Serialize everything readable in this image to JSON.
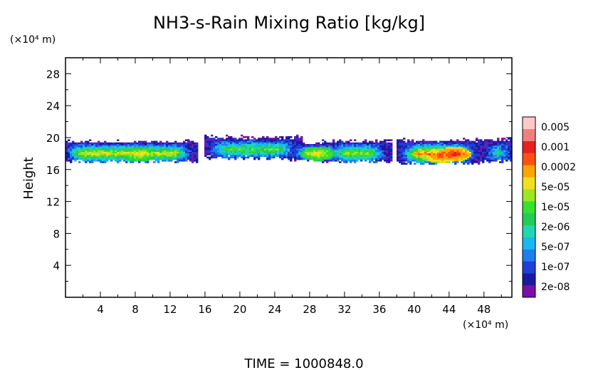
{
  "chart_data": {
    "type": "heatmap",
    "title": "NH3-s-Rain Mixing Ratio [kg/kg]",
    "xlabel": "",
    "ylabel": "Height",
    "x_unit_label": "(×10⁴ m)",
    "y_unit_label": "(×10⁴ m)",
    "xlim": [
      0,
      51.2
    ],
    "ylim": [
      0,
      30
    ],
    "x_ticks": [
      4,
      8,
      12,
      16,
      20,
      24,
      28,
      32,
      36,
      40,
      44,
      48
    ],
    "y_ticks": [
      4,
      8,
      12,
      16,
      20,
      24,
      28
    ],
    "x_tick_labels": [
      "4",
      "8",
      "12",
      "16",
      "20",
      "24",
      "28",
      "32",
      "36",
      "40",
      "44",
      "48"
    ],
    "y_tick_labels": [
      "4",
      "8",
      "12",
      "16",
      "20",
      "24",
      "28"
    ],
    "colorbar": {
      "colors": [
        "#7b0fa8",
        "#1a1aa0",
        "#1f3fd8",
        "#1e7ef0",
        "#18b8f0",
        "#1fd8b0",
        "#22cc55",
        "#38e030",
        "#9be820",
        "#f0e020",
        "#ffa500",
        "#ff5010",
        "#e82020",
        "#f08080",
        "#ffc8c8"
      ],
      "labels": [
        "2e-08",
        "1e-07",
        "5e-07",
        "2e-06",
        "1e-05",
        "5e-05",
        "0.0002",
        "0.001",
        "0.005"
      ]
    },
    "field_description": "Cloud band between heights ~17 and ~20, intensity by x",
    "bands": [
      {
        "x0": 0.0,
        "x1": 14.5,
        "ybot": 17.0,
        "ytop": 19.6,
        "peak_level": 9
      },
      {
        "x0": 16.5,
        "x1": 26.5,
        "ybot": 17.5,
        "ytop": 20.1,
        "peak_level": 7
      },
      {
        "x0": 26.0,
        "x1": 31.5,
        "ybot": 17.2,
        "ytop": 19.4,
        "peak_level": 9
      },
      {
        "x0": 30.0,
        "x1": 36.8,
        "ybot": 17.0,
        "ytop": 19.6,
        "peak_level": 8
      },
      {
        "x0": 38.5,
        "x1": 47.0,
        "ybot": 16.8,
        "ytop": 19.7,
        "peak_level": 11
      },
      {
        "x0": 48.0,
        "x1": 51.2,
        "ybot": 17.0,
        "ytop": 19.8,
        "peak_level": 7
      }
    ],
    "hotspots": [
      {
        "x": 8.5,
        "y": 17.9,
        "level": 9
      },
      {
        "x": 29.0,
        "y": 18.0,
        "level": 9
      },
      {
        "x": 43.0,
        "y": 17.7,
        "level": 11
      },
      {
        "x": 44.6,
        "y": 17.9,
        "level": 12
      }
    ]
  },
  "footer": {
    "time_label": "TIME  =  1000848.0"
  }
}
